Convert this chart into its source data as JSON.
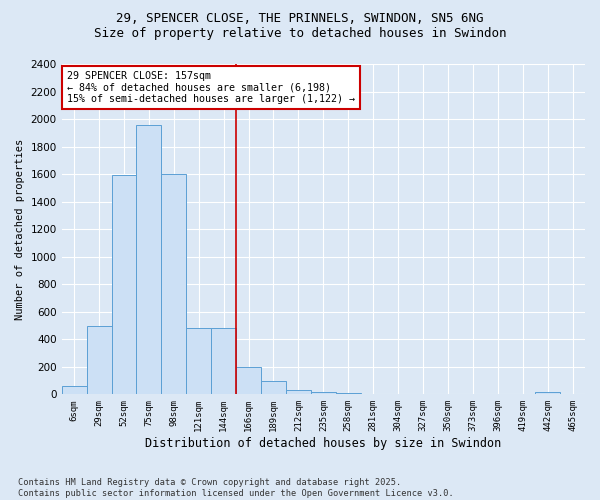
{
  "title1": "29, SPENCER CLOSE, THE PRINNELS, SWINDON, SN5 6NG",
  "title2": "Size of property relative to detached houses in Swindon",
  "xlabel": "Distribution of detached houses by size in Swindon",
  "ylabel": "Number of detached properties",
  "categories": [
    "6sqm",
    "29sqm",
    "52sqm",
    "75sqm",
    "98sqm",
    "121sqm",
    "144sqm",
    "166sqm",
    "189sqm",
    "212sqm",
    "235sqm",
    "258sqm",
    "281sqm",
    "304sqm",
    "327sqm",
    "350sqm",
    "373sqm",
    "396sqm",
    "419sqm",
    "442sqm",
    "465sqm"
  ],
  "values": [
    60,
    500,
    1590,
    1960,
    1600,
    480,
    480,
    200,
    100,
    35,
    15,
    10,
    5,
    5,
    2,
    2,
    1,
    0,
    0,
    20,
    0
  ],
  "bar_color": "#cce0f5",
  "bar_edge_color": "#5b9fd4",
  "vline_color": "#cc0000",
  "annotation_text": "29 SPENCER CLOSE: 157sqm\n← 84% of detached houses are smaller (6,198)\n15% of semi-detached houses are larger (1,122) →",
  "annotation_box_color": "#ffffff",
  "annotation_box_edge": "#cc0000",
  "footnote": "Contains HM Land Registry data © Crown copyright and database right 2025.\nContains public sector information licensed under the Open Government Licence v3.0.",
  "ylim": [
    0,
    2400
  ],
  "yticks": [
    0,
    200,
    400,
    600,
    800,
    1000,
    1200,
    1400,
    1600,
    1800,
    2000,
    2200,
    2400
  ],
  "bg_color": "#dce8f5",
  "plot_bg_color": "#dce8f5",
  "grid_color": "#ffffff",
  "title1_fontsize": 9,
  "title2_fontsize": 9
}
